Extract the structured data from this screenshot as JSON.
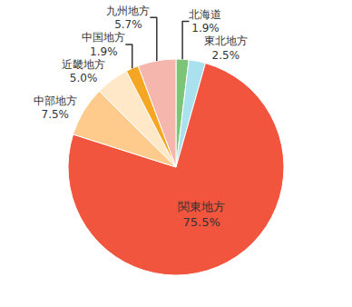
{
  "chart_data": {
    "type": "pie",
    "categories": [
      "北海道",
      "東北地方",
      "関東地方",
      "中部地方",
      "近畿地方",
      "中国地方",
      "九州地方"
    ],
    "values": [
      1.9,
      2.5,
      75.5,
      7.5,
      5.0,
      1.9,
      5.7
    ],
    "value_labels": [
      "1.9%",
      "2.5%",
      "75.5%",
      "7.5%",
      "5.0%",
      "1.9%",
      "5.7%"
    ],
    "colors": [
      "#7cc576",
      "#a9e1ee",
      "#f2553d",
      "#ffcb8c",
      "#ffe8c8",
      "#f5a623",
      "#f4b6ad"
    ],
    "data_labels": true
  }
}
